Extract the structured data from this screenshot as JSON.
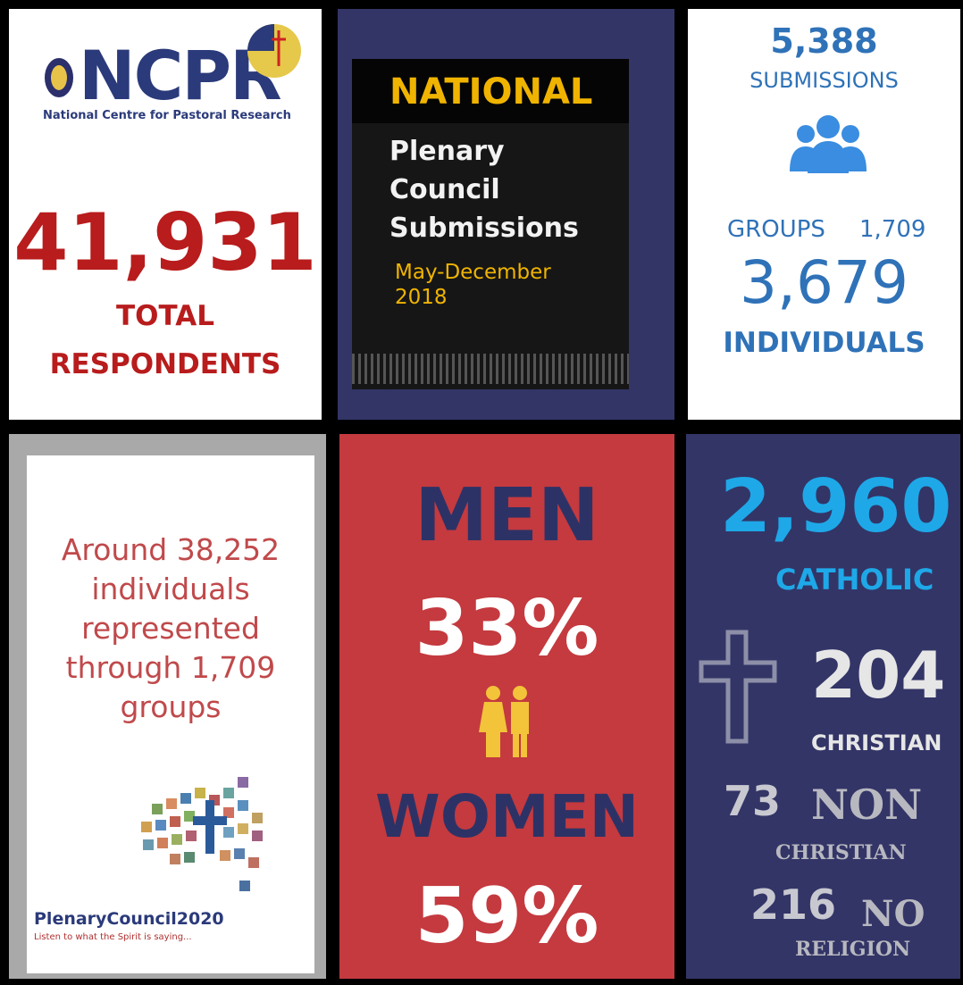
{
  "ncpr": {
    "logo": "NCPR",
    "subtitle": "National Centre for Pastoral Research"
  },
  "total": {
    "number": "41,931",
    "label_lines": [
      "TOTAL",
      "RESPONDENTS"
    ]
  },
  "title": {
    "heading": "NATIONAL",
    "lines": [
      "Plenary",
      "Council",
      "Submissions"
    ],
    "dates": [
      "May-December",
      "2018"
    ]
  },
  "submissions": {
    "number": "5,388",
    "label": "SUBMISSIONS",
    "groups_label": "GROUPS",
    "groups": "1,709",
    "individuals": "3,679",
    "individuals_label": "INDIVIDUALS"
  },
  "represented": {
    "lines": [
      "Around 38,252",
      "individuals",
      "represented",
      "through 1,709",
      "groups"
    ]
  },
  "plenary": {
    "name": "PlenaryCouncil2020",
    "tagline": "Listen to what the Spirit is saying..."
  },
  "gender": {
    "men_label": "MEN",
    "men": "33%",
    "women_label": "WOMEN",
    "women": "59%"
  },
  "religion": {
    "catholic": "2,960",
    "catholic_label": "CATHOLIC",
    "christian": "204",
    "christian_label": "CHRISTIAN",
    "non_christian": "73",
    "non_christian_label_lines": [
      "NON",
      "CHRISTIAN"
    ],
    "no_religion": "216",
    "no_religion_label_lines": [
      "NO",
      "RELIGION"
    ]
  }
}
